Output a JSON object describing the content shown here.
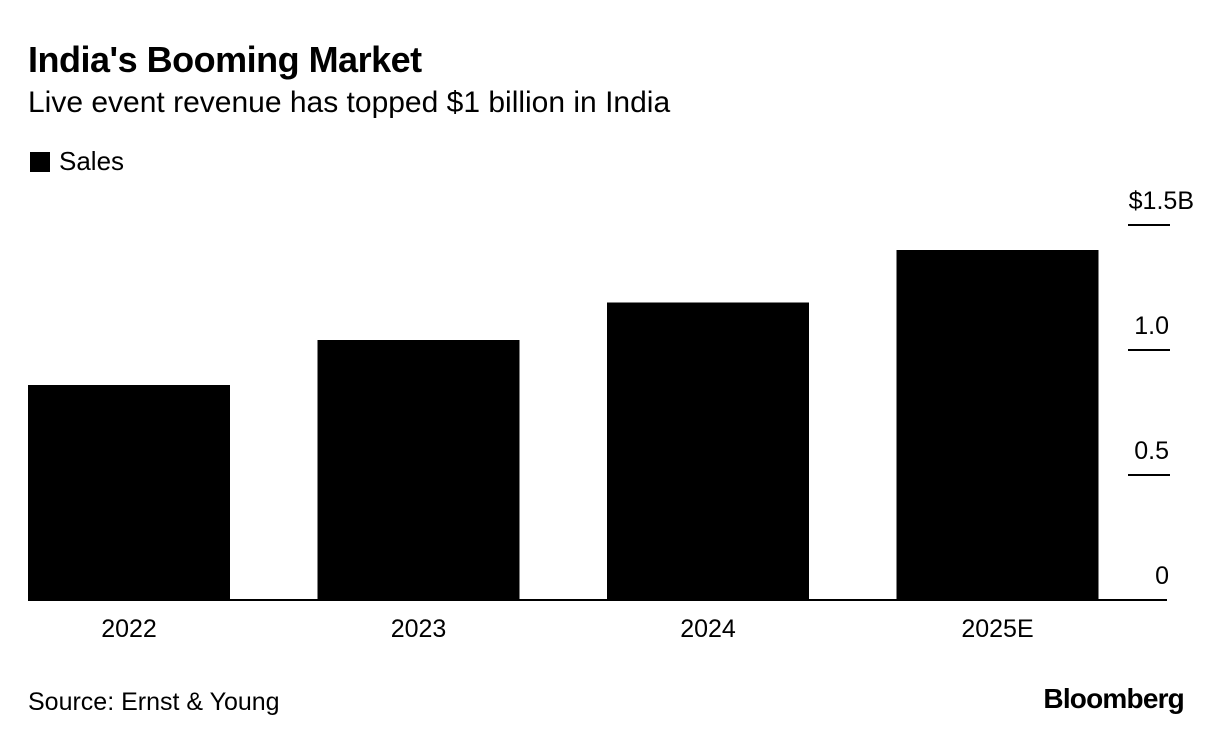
{
  "header": {
    "title": "India's Booming Market",
    "subtitle": "Live event revenue has topped $1 billion in India"
  },
  "legend": {
    "label": "Sales"
  },
  "footer": {
    "source": "Source: Ernst & Young",
    "brand": "Bloomberg"
  },
  "colors": {
    "bar": "#000000",
    "axis": "#000000",
    "background": "#ffffff"
  },
  "chart_data": {
    "type": "bar",
    "title": "India's Booming Market",
    "subtitle": "Live event revenue has topped $1 billion in India",
    "categories": [
      "2022",
      "2023",
      "2024",
      "2025E"
    ],
    "series": [
      {
        "name": "Sales",
        "values": [
          0.86,
          1.04,
          1.19,
          1.4
        ]
      }
    ],
    "ylim": [
      0,
      1.5
    ],
    "yticks": [
      0,
      0.5,
      1.0,
      1.5
    ],
    "ytick_labels": [
      "0",
      "0.5",
      "1.0",
      "$1.5B"
    ],
    "y_axis_position": "right",
    "xlabel": "",
    "ylabel": "",
    "grid": false,
    "legend_position": "top-left"
  }
}
